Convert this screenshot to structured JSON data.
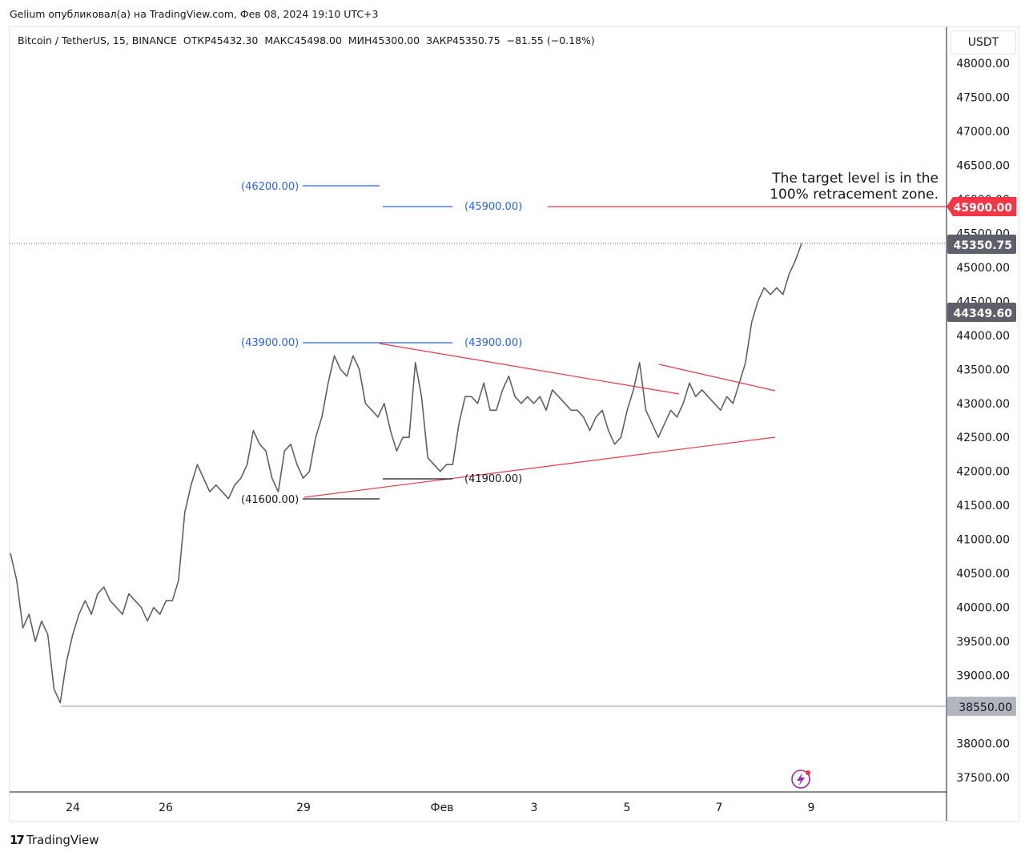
{
  "header": {
    "publisher_line": "Gelium опубликовал(а) на TradingView.com, Фев 08, 2024 19:10 UTC+3"
  },
  "legend": {
    "symbol": "Bitcoin / TetherUS, 15, BINANCE",
    "open": "ОТКР45432.30",
    "high": "МАКС45498.00",
    "low": "МИН45300.00",
    "close": "ЗАКР45350.75",
    "change": "−81.55 (−0.18%)"
  },
  "currency_button": "USDT",
  "branding": {
    "name": "TradingView",
    "logo_mark": "17"
  },
  "chart_data": {
    "type": "line",
    "title": "Bitcoin / TetherUS, 15, BINANCE",
    "xlabel": "",
    "ylabel": "",
    "ylim": [
      37250,
      48350
    ],
    "x_tick_labels": [
      "24",
      "26",
      "29",
      "Фев",
      "3",
      "5",
      "7",
      "9"
    ],
    "y_tick_labels": [
      "48000.00",
      "47500.00",
      "47000.00",
      "46500.00",
      "46000.00",
      "45500.00",
      "45000.00",
      "44500.00",
      "44000.00",
      "43500.00",
      "43000.00",
      "42500.00",
      "42000.00",
      "41500.00",
      "41000.00",
      "40500.00",
      "40000.00",
      "39500.00",
      "39000.00",
      "38500.00",
      "38000.00",
      "37500.00"
    ],
    "series": [
      {
        "name": "BTCUSDT 15m",
        "values": [
          40800,
          40400,
          39700,
          39900,
          39500,
          39800,
          39600,
          38800,
          38600,
          39200,
          39600,
          39900,
          40100,
          39900,
          40200,
          40300,
          40100,
          40000,
          39900,
          40200,
          40100,
          40000,
          39800,
          40000,
          39900,
          40100,
          40100,
          40400,
          41400,
          41800,
          42100,
          41900,
          41700,
          41800,
          41700,
          41600,
          41800,
          41900,
          42100,
          42600,
          42400,
          42300,
          41900,
          41700,
          42300,
          42400,
          42100,
          41900,
          42000,
          42500,
          42800,
          43300,
          43700,
          43500,
          43400,
          43700,
          43500,
          43000,
          42900,
          42800,
          43000,
          42600,
          42300,
          42500,
          42500,
          43600,
          43100,
          42200,
          42100,
          42000,
          42100,
          42100,
          42700,
          43100,
          43100,
          43000,
          43300,
          42900,
          42900,
          43200,
          43400,
          43100,
          43000,
          43100,
          43000,
          43100,
          42900,
          43200,
          43100,
          43000,
          42900,
          42900,
          42800,
          42600,
          42800,
          42900,
          42600,
          42400,
          42500,
          42900,
          43200,
          43600,
          42900,
          42700,
          42500,
          42700,
          42900,
          42800,
          43000,
          43300,
          43100,
          43200,
          43100,
          43000,
          42900,
          43100,
          43000,
          43300,
          43600,
          44200,
          44500,
          44700,
          44600,
          44700,
          44600,
          44900,
          45100,
          45350
        ]
      }
    ],
    "price_labels": {
      "target": "45900.00",
      "last": "45350.75",
      "mid": "44349.60",
      "low": "38550.00"
    },
    "annotations": {
      "level_46200": "(46200.00)",
      "level_45900": "(45900.00)",
      "level_43900_left": "(43900.00)",
      "level_43900_right": "(43900.00)",
      "level_41600": "(41600.00)",
      "level_41900": "(41900.00)",
      "note_line1": "The target level is in the",
      "note_line2": "100% retracement zone."
    },
    "colors": {
      "candle": "#5d606b",
      "triangle": "#f23645",
      "fib_blue": "#2962ff",
      "target_bg": "#f23645",
      "dark_label": "#5d606b",
      "low_label": "#b2b5be"
    }
  }
}
